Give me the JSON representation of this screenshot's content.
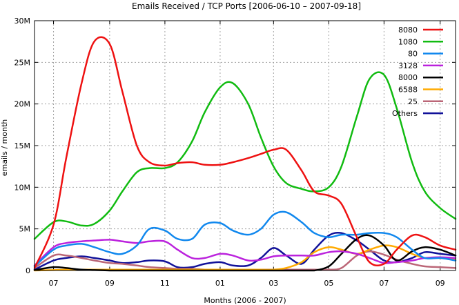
{
  "chart_data": {
    "type": "line",
    "title": "Emails Received / TCP Ports [2006-06-10 – 2007-09-18]",
    "xlabel": "Months (2006 - 2007)",
    "ylabel": "emails / month",
    "xlim": [
      "2006-06-10",
      "2007-09-18"
    ],
    "ylim": [
      0,
      30000000
    ],
    "x_ticks": [
      {
        "date": "2006-07-01",
        "label": "07"
      },
      {
        "date": "2006-09-01",
        "label": "09"
      },
      {
        "date": "2006-11-01",
        "label": "11"
      },
      {
        "date": "2007-01-01",
        "label": "01"
      },
      {
        "date": "2007-03-01",
        "label": "03"
      },
      {
        "date": "2007-05-01",
        "label": "05"
      },
      {
        "date": "2007-07-01",
        "label": "07"
      },
      {
        "date": "2007-09-01",
        "label": "09"
      }
    ],
    "y_ticks": [
      {
        "value": 0,
        "label": "0"
      },
      {
        "value": 5000000,
        "label": "5M"
      },
      {
        "value": 10000000,
        "label": "10M"
      },
      {
        "value": 15000000,
        "label": "15M"
      },
      {
        "value": 20000000,
        "label": "20M"
      },
      {
        "value": 25000000,
        "label": "25M"
      },
      {
        "value": 30000000,
        "label": "30M"
      }
    ],
    "grid": true,
    "legend_position": "top-right",
    "x": [
      "2006-06-10",
      "2006-07-01",
      "2006-07-15",
      "2006-08-01",
      "2006-08-15",
      "2006-09-01",
      "2006-09-15",
      "2006-10-01",
      "2006-10-15",
      "2006-11-01",
      "2006-11-15",
      "2006-12-01",
      "2006-12-15",
      "2007-01-01",
      "2007-01-15",
      "2007-02-01",
      "2007-02-15",
      "2007-03-01",
      "2007-03-15",
      "2007-04-01",
      "2007-04-15",
      "2007-05-01",
      "2007-05-15",
      "2007-06-01",
      "2007-06-15",
      "2007-07-01",
      "2007-07-15",
      "2007-08-01",
      "2007-08-15",
      "2007-09-01",
      "2007-09-18"
    ],
    "series": [
      {
        "name": "8080",
        "color": "#ee1111",
        "values": [
          0.3,
          5.5,
          13.5,
          22.5,
          27.5,
          27.2,
          21.5,
          15.0,
          13.0,
          12.6,
          12.9,
          13.0,
          12.7,
          12.7,
          13.0,
          13.5,
          14.0,
          14.5,
          14.5,
          12.0,
          9.5,
          9.0,
          8.0,
          4.0,
          1.0,
          0.8,
          2.5,
          4.2,
          4.0,
          3.0,
          2.5
        ]
      },
      {
        "name": "1080",
        "color": "#11bb11",
        "values": [
          3.8,
          5.8,
          5.9,
          5.4,
          5.6,
          7.2,
          9.5,
          11.8,
          12.3,
          12.3,
          13.0,
          15.5,
          19.0,
          22.0,
          22.5,
          20.0,
          16.0,
          12.5,
          10.5,
          9.8,
          9.5,
          10.0,
          12.5,
          18.5,
          23.0,
          23.5,
          19.5,
          13.0,
          9.5,
          7.5,
          6.2
        ]
      },
      {
        "name": "80",
        "color": "#1188ee",
        "values": [
          0.5,
          2.5,
          3.0,
          3.2,
          2.8,
          2.2,
          2.0,
          3.0,
          5.0,
          4.8,
          3.8,
          3.8,
          5.5,
          5.7,
          4.8,
          4.3,
          5.0,
          6.7,
          7.0,
          5.8,
          4.5,
          4.0,
          4.3,
          4.3,
          4.5,
          4.5,
          4.0,
          2.5,
          1.5,
          1.5,
          1.2
        ]
      },
      {
        "name": "3128",
        "color": "#bb22dd",
        "values": [
          0.6,
          2.8,
          3.3,
          3.5,
          3.6,
          3.7,
          3.5,
          3.3,
          3.5,
          3.5,
          2.5,
          1.5,
          1.5,
          2.0,
          1.8,
          1.2,
          1.3,
          1.7,
          1.8,
          1.8,
          1.8,
          2.2,
          2.3,
          2.0,
          1.5,
          0.9,
          1.0,
          1.2,
          1.5,
          1.6,
          1.5
        ]
      },
      {
        "name": "8000",
        "color": "#000000",
        "values": [
          0.05,
          0.4,
          0.3,
          0.1,
          0.05,
          0.0,
          0.0,
          0.0,
          0.0,
          0.0,
          0.0,
          0.0,
          0.0,
          0.0,
          0.0,
          0.0,
          0.0,
          0.0,
          0.0,
          0.0,
          0.0,
          0.5,
          2.0,
          3.8,
          4.2,
          3.0,
          1.2,
          2.3,
          2.8,
          2.5,
          1.8
        ]
      },
      {
        "name": "6588",
        "color": "#ffaa00",
        "values": [
          0.0,
          0.05,
          0.1,
          0.1,
          0.1,
          0.1,
          0.1,
          0.1,
          0.1,
          0.1,
          0.1,
          0.1,
          0.1,
          0.1,
          0.1,
          0.1,
          0.1,
          0.1,
          0.3,
          1.0,
          2.2,
          2.8,
          2.5,
          2.0,
          2.5,
          3.0,
          2.8,
          2.0,
          1.5,
          1.5,
          1.3
        ]
      },
      {
        "name": "25",
        "color": "#bb6677",
        "values": [
          0.3,
          1.8,
          1.8,
          1.5,
          1.2,
          0.9,
          0.8,
          0.6,
          0.4,
          0.3,
          0.2,
          0.2,
          0.1,
          0.1,
          0.1,
          0.1,
          0.1,
          0.1,
          0.1,
          0.1,
          0.1,
          0.1,
          0.3,
          1.8,
          2.3,
          1.9,
          1.3,
          0.8,
          0.5,
          0.4,
          0.3
        ]
      },
      {
        "name": "Others",
        "color": "#111199",
        "values": [
          0.1,
          1.2,
          1.5,
          1.7,
          1.5,
          1.2,
          0.9,
          1.0,
          1.2,
          1.1,
          0.4,
          0.4,
          0.8,
          1.0,
          0.6,
          0.6,
          1.5,
          2.7,
          1.8,
          0.8,
          2.5,
          4.2,
          4.5,
          3.6,
          2.5,
          1.2,
          1.0,
          1.5,
          2.2,
          2.0,
          1.8
        ]
      }
    ],
    "values_unit": "M"
  }
}
